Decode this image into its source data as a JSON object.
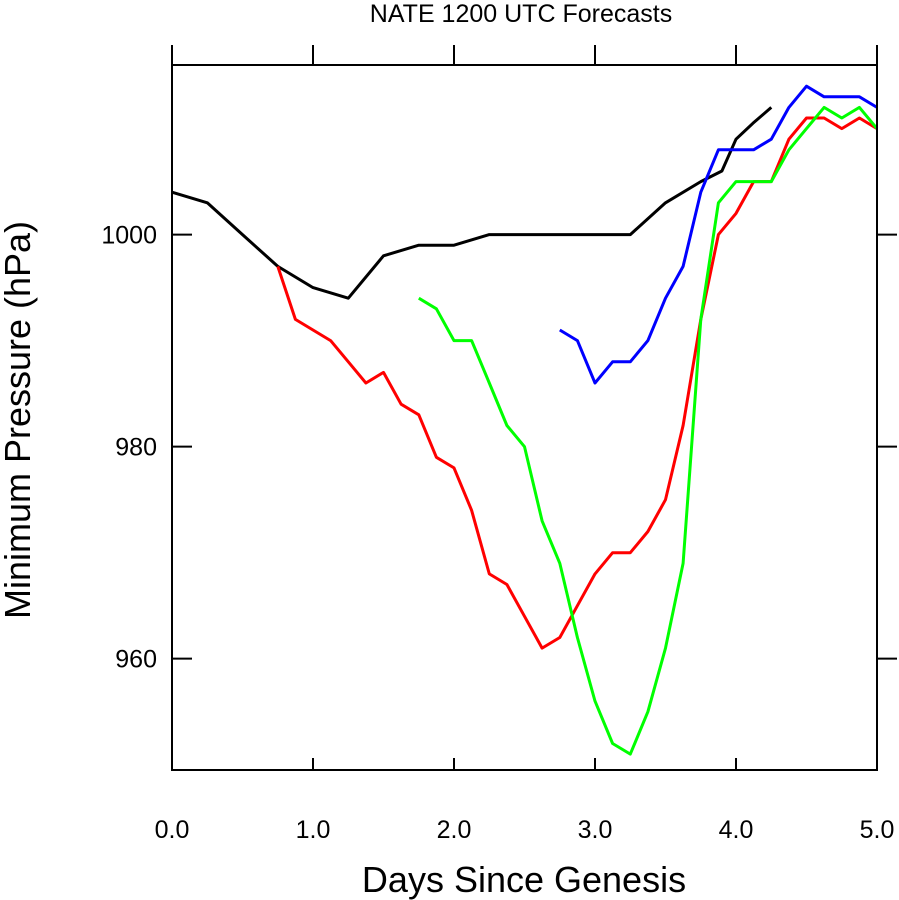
{
  "chart_data": {
    "type": "line",
    "title": "NATE 1200 UTC Forecasts",
    "xlabel": "Days Since Genesis",
    "ylabel": "Minimum Pressure (hPa)",
    "xlim": [
      0.0,
      5.0
    ],
    "ylim": [
      949.5,
      1016
    ],
    "x_ticks": [
      0.0,
      1.0,
      2.0,
      3.0,
      4.0,
      5.0
    ],
    "x_tick_labels": [
      "0.0",
      "1.0",
      "2.0",
      "3.0",
      "4.0",
      "5.0"
    ],
    "y_ticks": [
      960,
      980,
      1000
    ],
    "y_tick_labels": [
      "960",
      "980",
      "1000"
    ],
    "grid": false,
    "series": [
      {
        "color": "#000000",
        "points": [
          [
            0.0,
            1004
          ],
          [
            0.25,
            1003
          ],
          [
            0.5,
            1000
          ],
          [
            0.75,
            997
          ],
          [
            1.0,
            995
          ],
          [
            1.25,
            994
          ],
          [
            1.5,
            998
          ],
          [
            1.75,
            999
          ],
          [
            2.0,
            999
          ],
          [
            2.25,
            1000
          ],
          [
            2.5,
            1000
          ],
          [
            2.75,
            1000
          ],
          [
            3.0,
            1000
          ],
          [
            3.25,
            1000
          ],
          [
            3.5,
            1003
          ],
          [
            3.75,
            1005
          ],
          [
            3.9,
            1006
          ],
          [
            4.0,
            1009
          ],
          [
            4.12,
            1010.5
          ],
          [
            4.25,
            1012
          ]
        ]
      },
      {
        "color": "#ff0000",
        "points": [
          [
            0.75,
            997
          ],
          [
            0.875,
            992
          ],
          [
            1.0,
            991
          ],
          [
            1.125,
            990
          ],
          [
            1.25,
            988
          ],
          [
            1.375,
            986
          ],
          [
            1.5,
            987
          ],
          [
            1.625,
            984
          ],
          [
            1.75,
            983
          ],
          [
            1.875,
            979
          ],
          [
            2.0,
            978
          ],
          [
            2.125,
            974
          ],
          [
            2.25,
            968
          ],
          [
            2.375,
            967
          ],
          [
            2.5,
            964
          ],
          [
            2.625,
            961
          ],
          [
            2.75,
            962
          ],
          [
            2.875,
            965
          ],
          [
            3.0,
            968
          ],
          [
            3.125,
            970
          ],
          [
            3.25,
            970
          ],
          [
            3.375,
            972
          ],
          [
            3.5,
            975
          ],
          [
            3.625,
            982
          ],
          [
            3.75,
            992
          ],
          [
            3.875,
            1000
          ],
          [
            4.0,
            1002
          ],
          [
            4.125,
            1005
          ],
          [
            4.25,
            1005
          ],
          [
            4.375,
            1009
          ],
          [
            4.5,
            1011
          ],
          [
            4.625,
            1011
          ],
          [
            4.75,
            1010
          ],
          [
            4.875,
            1011
          ],
          [
            5.0,
            1010
          ]
        ]
      },
      {
        "color": "#00ff00",
        "points": [
          [
            1.75,
            994
          ],
          [
            1.875,
            993
          ],
          [
            2.0,
            990
          ],
          [
            2.125,
            990
          ],
          [
            2.25,
            986
          ],
          [
            2.375,
            982
          ],
          [
            2.5,
            980
          ],
          [
            2.625,
            973
          ],
          [
            2.75,
            969
          ],
          [
            2.875,
            962
          ],
          [
            3.0,
            956
          ],
          [
            3.125,
            952
          ],
          [
            3.25,
            951
          ],
          [
            3.375,
            955
          ],
          [
            3.5,
            961
          ],
          [
            3.625,
            969
          ],
          [
            3.75,
            992
          ],
          [
            3.875,
            1003
          ],
          [
            4.0,
            1005
          ],
          [
            4.125,
            1005
          ],
          [
            4.25,
            1005
          ],
          [
            4.375,
            1008
          ],
          [
            4.5,
            1010
          ],
          [
            4.625,
            1012
          ],
          [
            4.75,
            1011
          ],
          [
            4.875,
            1012
          ],
          [
            5.0,
            1010
          ]
        ]
      },
      {
        "color": "#0000ff",
        "points": [
          [
            2.75,
            991
          ],
          [
            2.875,
            990
          ],
          [
            3.0,
            986
          ],
          [
            3.125,
            988
          ],
          [
            3.25,
            988
          ],
          [
            3.375,
            990
          ],
          [
            3.5,
            994
          ],
          [
            3.625,
            997
          ],
          [
            3.75,
            1004
          ],
          [
            3.875,
            1008
          ],
          [
            4.0,
            1008
          ],
          [
            4.125,
            1008
          ],
          [
            4.25,
            1009
          ],
          [
            4.375,
            1012
          ],
          [
            4.5,
            1014
          ],
          [
            4.625,
            1013
          ],
          [
            4.75,
            1013
          ],
          [
            4.875,
            1013
          ],
          [
            5.0,
            1012
          ]
        ]
      }
    ]
  }
}
